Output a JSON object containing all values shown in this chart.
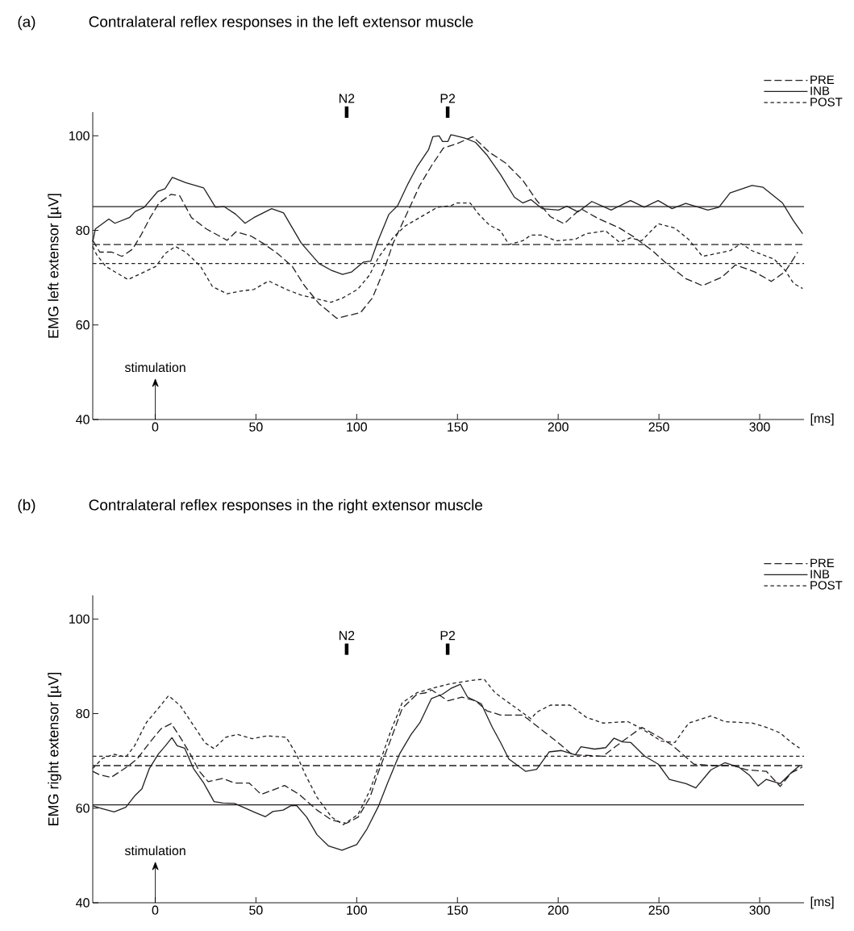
{
  "chart_data": [
    {
      "type": "line",
      "title": "Contralateral reflex responses in the left extensor muscle",
      "xlabel": "[ms]",
      "ylabel": "EMG left extensor [µV]",
      "xlim": [
        -31,
        322
      ],
      "ylim": [
        40,
        105
      ],
      "xticks": [
        0,
        50,
        100,
        150,
        200,
        250,
        300
      ],
      "yticks": [
        40,
        60,
        80,
        100
      ],
      "legend": "top right",
      "grid": false,
      "annotations": [
        "(a)",
        "N2",
        "P2",
        "stimulation"
      ],
      "ref_lines": [
        {
          "axis": "y",
          "value": 77,
          "line_style": "dashed",
          "color": "#231f20"
        },
        {
          "axis": "y",
          "value": 85,
          "line_style": "solid",
          "color": "#231f20"
        },
        {
          "axis": "y",
          "value": 73,
          "line_style": "dotted",
          "color": "#231f20"
        }
      ],
      "series": [
        {
          "name": "PRE",
          "color": "#231f20",
          "line_style": "dashed",
          "x": [
            -31,
            -27.5,
            -21.6,
            -16.5,
            -11.3,
            -6.9,
            -2.5,
            1.9,
            7.8,
            12.2,
            18,
            25.4,
            35.7,
            40.1,
            47.5,
            53.4,
            60.7,
            68,
            73.9,
            81.3,
            90.1,
            101.9,
            107.8,
            113.7,
            118.1,
            125.4,
            131.3,
            137.2,
            143,
            149.5,
            157.7,
            165.9,
            174,
            182.4,
            189.2,
            196.1,
            202.9,
            211.2,
            219.4,
            230.4,
            237.2,
            246.8,
            253.7,
            263.3,
            271.6,
            281.2,
            288,
            297.6,
            305.8,
            312.7,
            318.9
          ],
          "values": [
            77.9,
            75.4,
            75.4,
            74.5,
            76,
            79.1,
            82.7,
            85.8,
            87.6,
            87.3,
            82.7,
            80.3,
            77.9,
            79.7,
            78.8,
            77.3,
            75.1,
            72.4,
            68.4,
            64.5,
            61.4,
            62.6,
            65.7,
            71.8,
            77.3,
            84,
            89.5,
            93.7,
            97.4,
            98.3,
            99.8,
            96.5,
            94.2,
            90.6,
            86.4,
            82.9,
            81.4,
            84.6,
            82.6,
            80.5,
            78.7,
            75.7,
            73,
            69.8,
            68.3,
            70.1,
            72.7,
            71.2,
            69.2,
            71.3,
            75.4
          ]
        },
        {
          "name": "INB",
          "color": "#231f20",
          "line_style": "solid",
          "x": [
            -31,
            -29.7,
            -23,
            -20,
            -12.8,
            -9.9,
            -5.4,
            1.2,
            4.9,
            8.5,
            15.1,
            24,
            29.9,
            34.3,
            40,
            44.6,
            49,
            57.8,
            63.7,
            72.5,
            81.3,
            87.2,
            93,
            97.5,
            103.4,
            107,
            110.7,
            116,
            120.3,
            125.4,
            129.9,
            135.7,
            137.8,
            140.9,
            142.6,
            145.3,
            146.7,
            148,
            153.6,
            159,
            164.5,
            171.4,
            178.3,
            182.4,
            186.5,
            192,
            200.2,
            204.3,
            209.8,
            216.7,
            226.3,
            235.9,
            242.7,
            249.6,
            256.5,
            263.3,
            274.3,
            279.8,
            285.3,
            296.2,
            301.7,
            311.3,
            316.8,
            321.3
          ],
          "values": [
            77.6,
            80.3,
            82.4,
            81.5,
            82.7,
            84,
            84.9,
            88.2,
            88.8,
            91.2,
            90.1,
            89,
            84.9,
            85,
            83.4,
            81.5,
            82.7,
            84.6,
            83.7,
            77.3,
            73,
            71.6,
            70.7,
            71.2,
            73.3,
            73.5,
            77.9,
            83.4,
            85.2,
            89.8,
            93.4,
            97.1,
            99.8,
            100,
            98.8,
            98.8,
            100.2,
            100.1,
            99.5,
            98.6,
            96,
            91.8,
            87,
            85.8,
            86.5,
            84.6,
            84.3,
            85.1,
            83.9,
            86.1,
            84.3,
            86.3,
            84.9,
            86.3,
            84.6,
            85.7,
            84.3,
            84.9,
            87.9,
            89.5,
            89.1,
            85.8,
            82,
            79.3
          ]
        },
        {
          "name": "POST",
          "color": "#231f20",
          "line_style": "dotted",
          "x": [
            -31,
            -29,
            -24.6,
            -18.7,
            -13.5,
            -6.9,
            0.4,
            4.9,
            10,
            15.1,
            22.5,
            28.4,
            35.7,
            43.1,
            49,
            56.3,
            65.1,
            72.5,
            81.3,
            87.2,
            93,
            100.4,
            106.3,
            110.7,
            118.1,
            124,
            131.3,
            140.1,
            146.8,
            149.5,
            156.3,
            160.4,
            165.9,
            171.4,
            175.5,
            182.4,
            186.5,
            192,
            198.9,
            208.4,
            213.9,
            223.5,
            230.4,
            235.9,
            241.4,
            249.6,
            257.8,
            264.7,
            271.6,
            278.5,
            285.3,
            290.8,
            296.2,
            301.7,
            307.2,
            312.7,
            316.8,
            321.3
          ],
          "values": [
            76.6,
            74.8,
            72.4,
            70.9,
            69.6,
            70.9,
            72.4,
            75.1,
            76.6,
            75.4,
            72.4,
            68.1,
            66.6,
            67.2,
            67.5,
            69.3,
            67.5,
            66.3,
            65.4,
            64.8,
            65.7,
            67.5,
            70.5,
            74.2,
            78.5,
            80.9,
            82.7,
            84.9,
            85.2,
            85.8,
            85.8,
            83.5,
            81.1,
            79.9,
            77,
            77.8,
            79,
            79,
            77.8,
            78.1,
            79.3,
            79.9,
            77.5,
            78.4,
            77.8,
            81.4,
            80.5,
            78.1,
            74.5,
            75.1,
            75.7,
            77.2,
            75.7,
            74.8,
            73.9,
            71.5,
            68.8,
            67.7
          ]
        }
      ]
    },
    {
      "type": "line",
      "title": "Contralateral reflex responses in the right extensor muscle",
      "xlabel": "[ms]",
      "ylabel": "EMG right extensor [µV]",
      "xlim": [
        -31,
        322
      ],
      "ylim": [
        40,
        105
      ],
      "xticks": [
        0,
        50,
        100,
        150,
        200,
        250,
        300
      ],
      "yticks": [
        40,
        60,
        80,
        100
      ],
      "legend": "top right",
      "grid": false,
      "annotations": [
        "(b)",
        "N2",
        "P2",
        "stimulation"
      ],
      "ref_lines": [
        {
          "axis": "y",
          "value": 69,
          "line_style": "dashed",
          "color": "#231f20"
        },
        {
          "axis": "y",
          "value": 60.7,
          "line_style": "solid",
          "color": "#231f20"
        },
        {
          "axis": "y",
          "value": 71,
          "line_style": "dotted",
          "color": "#231f20"
        }
      ],
      "series": [
        {
          "name": "PRE",
          "color": "#231f20",
          "line_style": "dashed",
          "x": [
            -31,
            -27.7,
            -21.9,
            -13.1,
            -8.8,
            -2.9,
            2.9,
            8,
            12.4,
            17.5,
            21.9,
            26.3,
            33.6,
            39.4,
            46.7,
            52.6,
            64.2,
            71.5,
            80.3,
            87.6,
            94.9,
            100.7,
            106.6,
            110.9,
            116.8,
            122.6,
            129.9,
            134.3,
            137.2,
            145.3,
            152.2,
            159.1,
            164.6,
            171.4,
            182.4,
            189.3,
            198.9,
            207.1,
            222.3,
            227.7,
            236,
            241.5,
            251.1,
            256.6,
            267.4,
            277.2,
            286.8,
            293.7,
            303.3,
            310.2,
            315.7,
            321.2
          ],
          "values": [
            67.8,
            67.1,
            66.5,
            69,
            70.5,
            73.8,
            76.8,
            77.9,
            75,
            71.4,
            67.8,
            65.6,
            66.3,
            65.3,
            65.3,
            62.9,
            64.8,
            62.9,
            59.6,
            57.5,
            56.8,
            58.1,
            62.3,
            67.8,
            74.4,
            81.1,
            84.1,
            84.4,
            85,
            82.7,
            83.5,
            82.7,
            80.6,
            79.7,
            79.7,
            77.4,
            74.2,
            71.3,
            71,
            72.8,
            75.4,
            77.1,
            74.8,
            73.3,
            69.3,
            69,
            69,
            68.1,
            67.8,
            64.6,
            67.5,
            68.7
          ]
        },
        {
          "name": "INB",
          "color": "#231f20",
          "line_style": "solid",
          "x": [
            -31,
            -26.3,
            -20.4,
            -14.6,
            -10.2,
            -6.6,
            -2.9,
            1.5,
            5.1,
            8.3,
            10.9,
            14.6,
            19,
            24.1,
            29.2,
            33.6,
            39.4,
            45.3,
            49.6,
            54.7,
            58.4,
            63.5,
            67.2,
            70.1,
            75.2,
            80.3,
            86.1,
            92.7,
            100,
            105.1,
            110.9,
            115.3,
            121.2,
            127,
            131.4,
            137.1,
            142.6,
            146.7,
            151.5,
            155,
            161.8,
            167.3,
            171.4,
            175.5,
            183.8,
            189.3,
            195.5,
            201.6,
            208.5,
            211.3,
            218.1,
            223.6,
            227.7,
            231.9,
            236,
            242.9,
            249.7,
            255.2,
            263.5,
            268.3,
            275.8,
            282.7,
            289.6,
            295.1,
            299.2,
            303.3,
            310.2,
            315.7,
            319.8
          ],
          "values": [
            60.5,
            59.9,
            59.2,
            60.2,
            62.6,
            64.1,
            68.4,
            71.4,
            73.2,
            74.9,
            73.2,
            72.7,
            68.4,
            65.3,
            61.4,
            61.1,
            61,
            59.9,
            59.1,
            58.2,
            59.3,
            59.6,
            60.5,
            60.6,
            58.1,
            54.4,
            52,
            51.1,
            52.3,
            55.6,
            60.5,
            65.3,
            71.4,
            75.6,
            78.1,
            83.2,
            84.1,
            85.3,
            86.2,
            83.5,
            82.1,
            77.1,
            73.9,
            70.4,
            67.8,
            68.2,
            71.9,
            72.2,
            71.3,
            73,
            72.5,
            72.8,
            74.8,
            74,
            73.9,
            71,
            69.3,
            66.1,
            65.2,
            64.3,
            68.1,
            69.6,
            68.7,
            66.9,
            64.7,
            66.1,
            65.2,
            67.5,
            69
          ]
        },
        {
          "name": "POST",
          "color": "#231f20",
          "line_style": "dotted",
          "x": [
            -31,
            -26.3,
            -20.4,
            -14.6,
            -10.2,
            -4.4,
            1.5,
            6.6,
            12.4,
            19,
            24.8,
            29.2,
            35,
            40.9,
            48.2,
            55.5,
            65,
            70.1,
            74.5,
            80.3,
            87.6,
            93.4,
            100.7,
            106.6,
            112.4,
            116.8,
            122.6,
            129.9,
            137.1,
            145.3,
            156.3,
            163.2,
            168.7,
            174.2,
            181,
            186.5,
            189.3,
            196.2,
            205.8,
            214,
            222.3,
            234.6,
            241.5,
            251.1,
            257.9,
            264.8,
            275.8,
            282.7,
            296.4,
            303.3,
            310.2,
            315.7,
            319.8
          ],
          "values": [
            68.4,
            70.5,
            71.4,
            70.8,
            73.2,
            78.1,
            81.1,
            83.8,
            81.7,
            77.5,
            73.8,
            72.6,
            75,
            75.6,
            74.7,
            75.3,
            75,
            71.4,
            67.1,
            62.3,
            58.1,
            56.5,
            58.7,
            63.8,
            70.8,
            76.2,
            82.3,
            84.4,
            85.3,
            86.2,
            87,
            87.3,
            84.4,
            82.7,
            80.6,
            78.9,
            80.3,
            81.8,
            81.8,
            79.2,
            78,
            78.3,
            76.8,
            74.2,
            73.9,
            78,
            79.5,
            78.3,
            78,
            77.1,
            75.9,
            73.9,
            72.7
          ]
        }
      ]
    }
  ]
}
